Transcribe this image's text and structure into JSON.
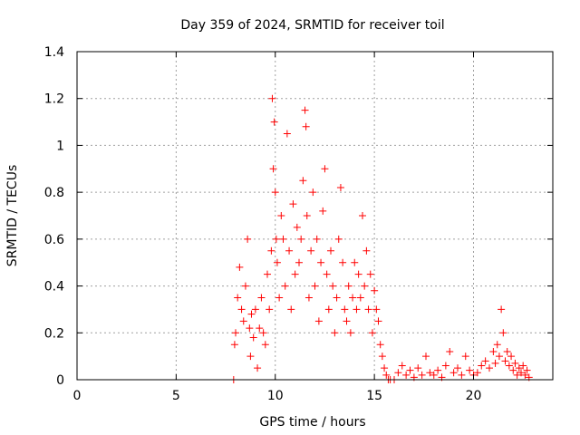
{
  "chart_data": {
    "type": "scatter",
    "title": "Day 359 of 2024, SRMTID for receiver toil",
    "xlabel": "GPS time / hours",
    "ylabel": "SRMTID / TECUs",
    "xlim": [
      0,
      24
    ],
    "ylim": [
      0,
      1.4
    ],
    "xticks": [
      0,
      5,
      10,
      15,
      20
    ],
    "xtick_labels": [
      "0",
      "5",
      "10",
      "15",
      "20"
    ],
    "yticks": [
      0,
      0.2,
      0.4,
      0.6,
      0.8,
      1.0,
      1.2,
      1.4
    ],
    "ytick_labels": [
      "0",
      "0.2",
      "0.4",
      "0.6",
      "0.8",
      "1",
      "1.2",
      "1.4"
    ],
    "grid": true,
    "marker": "+",
    "series": [
      {
        "name": "SRMTID",
        "color": "#ff0000",
        "x": [
          7.9,
          7.95,
          8.0,
          8.1,
          8.2,
          8.3,
          8.4,
          8.5,
          8.6,
          8.7,
          8.75,
          8.8,
          8.9,
          9.0,
          9.1,
          9.2,
          9.3,
          9.4,
          9.5,
          9.6,
          9.7,
          9.8,
          9.85,
          9.9,
          9.95,
          10.0,
          10.05,
          10.1,
          10.2,
          10.3,
          10.4,
          10.5,
          10.6,
          10.7,
          10.8,
          10.9,
          11.0,
          11.1,
          11.2,
          11.3,
          11.4,
          11.5,
          11.55,
          11.6,
          11.7,
          11.8,
          11.9,
          12.0,
          12.1,
          12.2,
          12.3,
          12.4,
          12.5,
          12.6,
          12.7,
          12.8,
          12.9,
          13.0,
          13.1,
          13.2,
          13.3,
          13.4,
          13.5,
          13.6,
          13.7,
          13.8,
          13.9,
          14.0,
          14.1,
          14.2,
          14.3,
          14.4,
          14.5,
          14.6,
          14.7,
          14.8,
          14.9,
          15.0,
          15.1,
          15.2,
          15.3,
          15.4,
          15.5,
          15.6,
          15.7,
          15.8,
          16.0,
          16.2,
          16.4,
          16.6,
          16.8,
          17.0,
          17.2,
          17.4,
          17.6,
          17.8,
          18.0,
          18.2,
          18.4,
          18.6,
          18.8,
          19.0,
          19.2,
          19.4,
          19.6,
          19.8,
          20.0,
          20.2,
          20.4,
          20.6,
          20.8,
          21.0,
          21.1,
          21.2,
          21.3,
          21.4,
          21.5,
          21.6,
          21.7,
          21.8,
          21.9,
          22.0,
          22.1,
          22.2,
          22.3,
          22.4,
          22.5,
          22.6,
          22.7,
          22.8
        ],
        "y": [
          0.0,
          0.15,
          0.2,
          0.35,
          0.48,
          0.3,
          0.25,
          0.4,
          0.6,
          0.22,
          0.1,
          0.28,
          0.18,
          0.3,
          0.05,
          0.22,
          0.35,
          0.2,
          0.15,
          0.45,
          0.3,
          0.55,
          1.2,
          0.9,
          1.1,
          0.8,
          0.6,
          0.5,
          0.35,
          0.7,
          0.6,
          0.4,
          1.05,
          0.55,
          0.3,
          0.75,
          0.45,
          0.65,
          0.5,
          0.6,
          0.85,
          1.15,
          1.08,
          0.7,
          0.35,
          0.55,
          0.8,
          0.4,
          0.6,
          0.25,
          0.5,
          0.72,
          0.9,
          0.45,
          0.3,
          0.55,
          0.4,
          0.2,
          0.35,
          0.6,
          0.82,
          0.5,
          0.3,
          0.25,
          0.4,
          0.2,
          0.35,
          0.5,
          0.3,
          0.45,
          0.35,
          0.7,
          0.4,
          0.55,
          0.3,
          0.45,
          0.2,
          0.38,
          0.3,
          0.25,
          0.15,
          0.1,
          0.05,
          0.02,
          0.0,
          0.0,
          0.0,
          0.03,
          0.06,
          0.02,
          0.04,
          0.01,
          0.05,
          0.02,
          0.1,
          0.03,
          0.02,
          0.04,
          0.01,
          0.06,
          0.12,
          0.03,
          0.05,
          0.02,
          0.1,
          0.04,
          0.02,
          0.03,
          0.06,
          0.08,
          0.05,
          0.12,
          0.07,
          0.15,
          0.1,
          0.3,
          0.2,
          0.08,
          0.12,
          0.06,
          0.1,
          0.04,
          0.07,
          0.02,
          0.05,
          0.03,
          0.06,
          0.02,
          0.04,
          0.01
        ]
      }
    ]
  }
}
